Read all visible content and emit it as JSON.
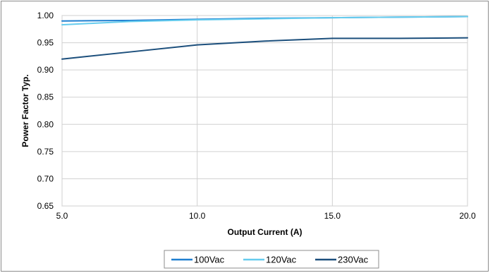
{
  "chart_data": {
    "type": "line",
    "title": "",
    "xlabel": "Output Current (A)",
    "ylabel": "Power Factor Typ.",
    "xlim": [
      5.0,
      20.0
    ],
    "ylim": [
      0.65,
      1.0
    ],
    "x_ticks": [
      "5.0",
      "10.0",
      "15.0",
      "20.0"
    ],
    "y_ticks": [
      "0.65",
      "0.70",
      "0.75",
      "0.80",
      "0.85",
      "0.90",
      "0.95",
      "1.00"
    ],
    "grid": "horizontal",
    "legend_position": "bottom",
    "series": [
      {
        "name": "100Vac",
        "color": "#1f7fd0",
        "x": [
          5.0,
          7.5,
          10.0,
          12.5,
          15.0,
          17.5,
          20.0
        ],
        "y": [
          0.99,
          0.991,
          0.993,
          0.995,
          0.996,
          0.997,
          0.998
        ]
      },
      {
        "name": "120Vac",
        "color": "#66ccee",
        "x": [
          5.0,
          7.5,
          10.0,
          12.5,
          15.0,
          17.5,
          20.0
        ],
        "y": [
          0.983,
          0.989,
          0.992,
          0.994,
          0.996,
          0.997,
          0.998
        ]
      },
      {
        "name": "230Vac",
        "color": "#1c4f7c",
        "x": [
          5.0,
          7.5,
          10.0,
          12.5,
          15.0,
          17.5,
          20.0
        ],
        "y": [
          0.92,
          0.933,
          0.946,
          0.953,
          0.958,
          0.958,
          0.959
        ]
      }
    ]
  }
}
